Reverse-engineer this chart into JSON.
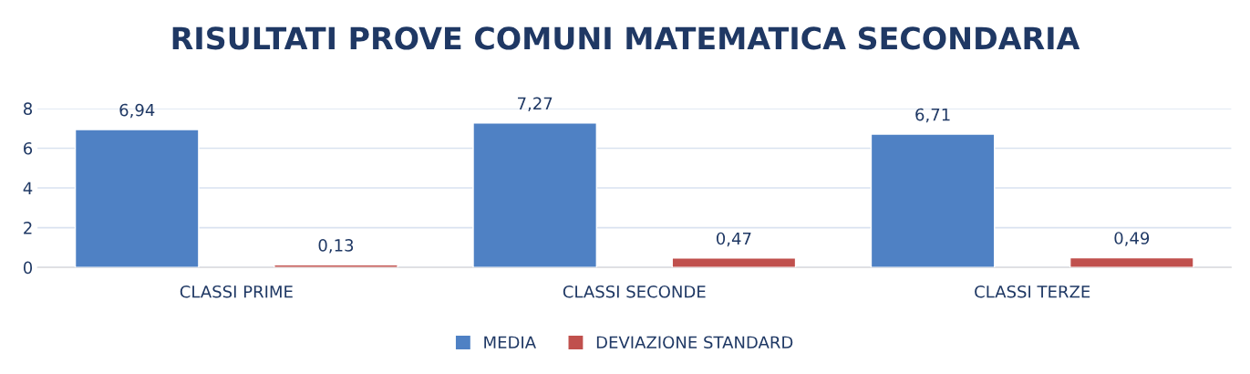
{
  "chart_data": {
    "type": "bar",
    "title": "RISULTATI PROVE COMUNI MATEMATICA SECONDARIA",
    "categories": [
      "CLASSI PRIME",
      "CLASSI SECONDE",
      "CLASSI TERZE"
    ],
    "series": [
      {
        "name": "MEDIA",
        "color": "#4f81c4",
        "values": [
          6.94,
          7.27,
          6.71
        ],
        "value_labels": [
          "6,94",
          "7,27",
          "6,71"
        ]
      },
      {
        "name": "DEVIAZIONE STANDARD",
        "color": "#c0504d",
        "values": [
          0.13,
          0.47,
          0.49
        ],
        "value_labels": [
          "0,13",
          "0,47",
          "0,49"
        ]
      }
    ],
    "ylim": [
      0,
      8
    ],
    "yticks": [
      0,
      2,
      4,
      6,
      8
    ],
    "grid": "y",
    "legend": "bottom"
  }
}
